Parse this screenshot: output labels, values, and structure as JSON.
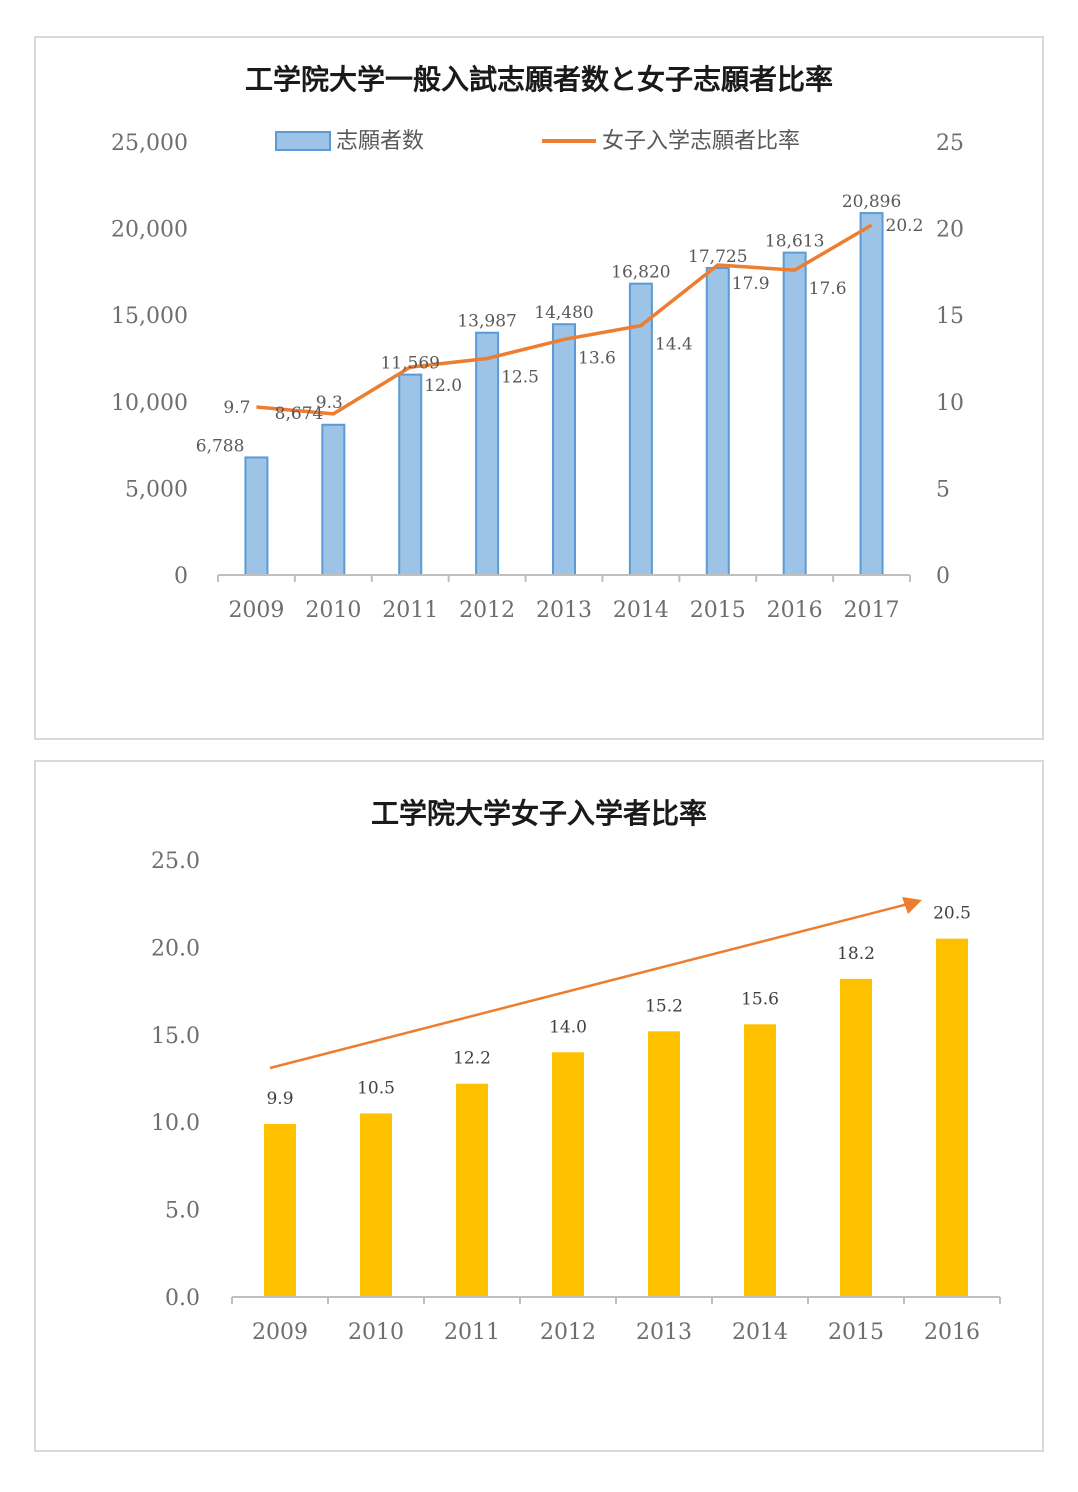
{
  "chart_data": [
    {
      "type": "bar",
      "title": "工学院大学一般入試志願者数と女子志願者比率",
      "categories": [
        "2009",
        "2010",
        "2011",
        "2012",
        "2013",
        "2014",
        "2015",
        "2016",
        "2017"
      ],
      "series": [
        {
          "name": "志願者数",
          "type": "bar",
          "axis": "left",
          "values": [
            6788,
            8674,
            11569,
            13987,
            14480,
            16820,
            17725,
            18613,
            20896
          ],
          "labels": [
            "6,788",
            "8,674",
            "11,569",
            "13,987",
            "14,480",
            "16,820",
            "17,725",
            "18,613",
            "20,896"
          ],
          "color": "#9dc3e6"
        },
        {
          "name": "女子入学志願者比率",
          "type": "line",
          "axis": "right",
          "values": [
            9.7,
            9.3,
            12.0,
            12.5,
            13.6,
            14.4,
            17.9,
            17.6,
            20.2
          ],
          "labels": [
            "9.7",
            "9.3",
            "12.0",
            "12.5",
            "13.6",
            "14.4",
            "17.9",
            "17.6",
            "20.2"
          ],
          "color": "#ed7d31"
        }
      ],
      "ylim": [
        0,
        25000
      ],
      "y2lim": [
        0,
        25
      ],
      "yticks": [
        "0",
        "5,000",
        "10,000",
        "15,000",
        "20,000",
        "25,000"
      ],
      "y2ticks": [
        "0",
        "5",
        "10",
        "15",
        "20",
        "25"
      ],
      "legend": "top",
      "grid": false
    },
    {
      "type": "bar",
      "title": "工学院大学女子入学者比率",
      "categories": [
        "2009",
        "2010",
        "2011",
        "2012",
        "2013",
        "2014",
        "2015",
        "2016"
      ],
      "series": [
        {
          "values": [
            9.9,
            10.5,
            12.2,
            14.0,
            15.2,
            15.6,
            18.2,
            20.5
          ],
          "labels": [
            "9.9",
            "10.5",
            "12.2",
            "14.0",
            "15.2",
            "15.6",
            "18.2",
            "20.5"
          ],
          "color": "#ffc000"
        }
      ],
      "ylim": [
        0,
        25
      ],
      "yticks": [
        "0.0",
        "5.0",
        "10.0",
        "15.0",
        "20.0",
        "25.0"
      ],
      "annotation": "upward trend arrow",
      "arrow_color": "#ed7d31",
      "grid": false
    }
  ]
}
